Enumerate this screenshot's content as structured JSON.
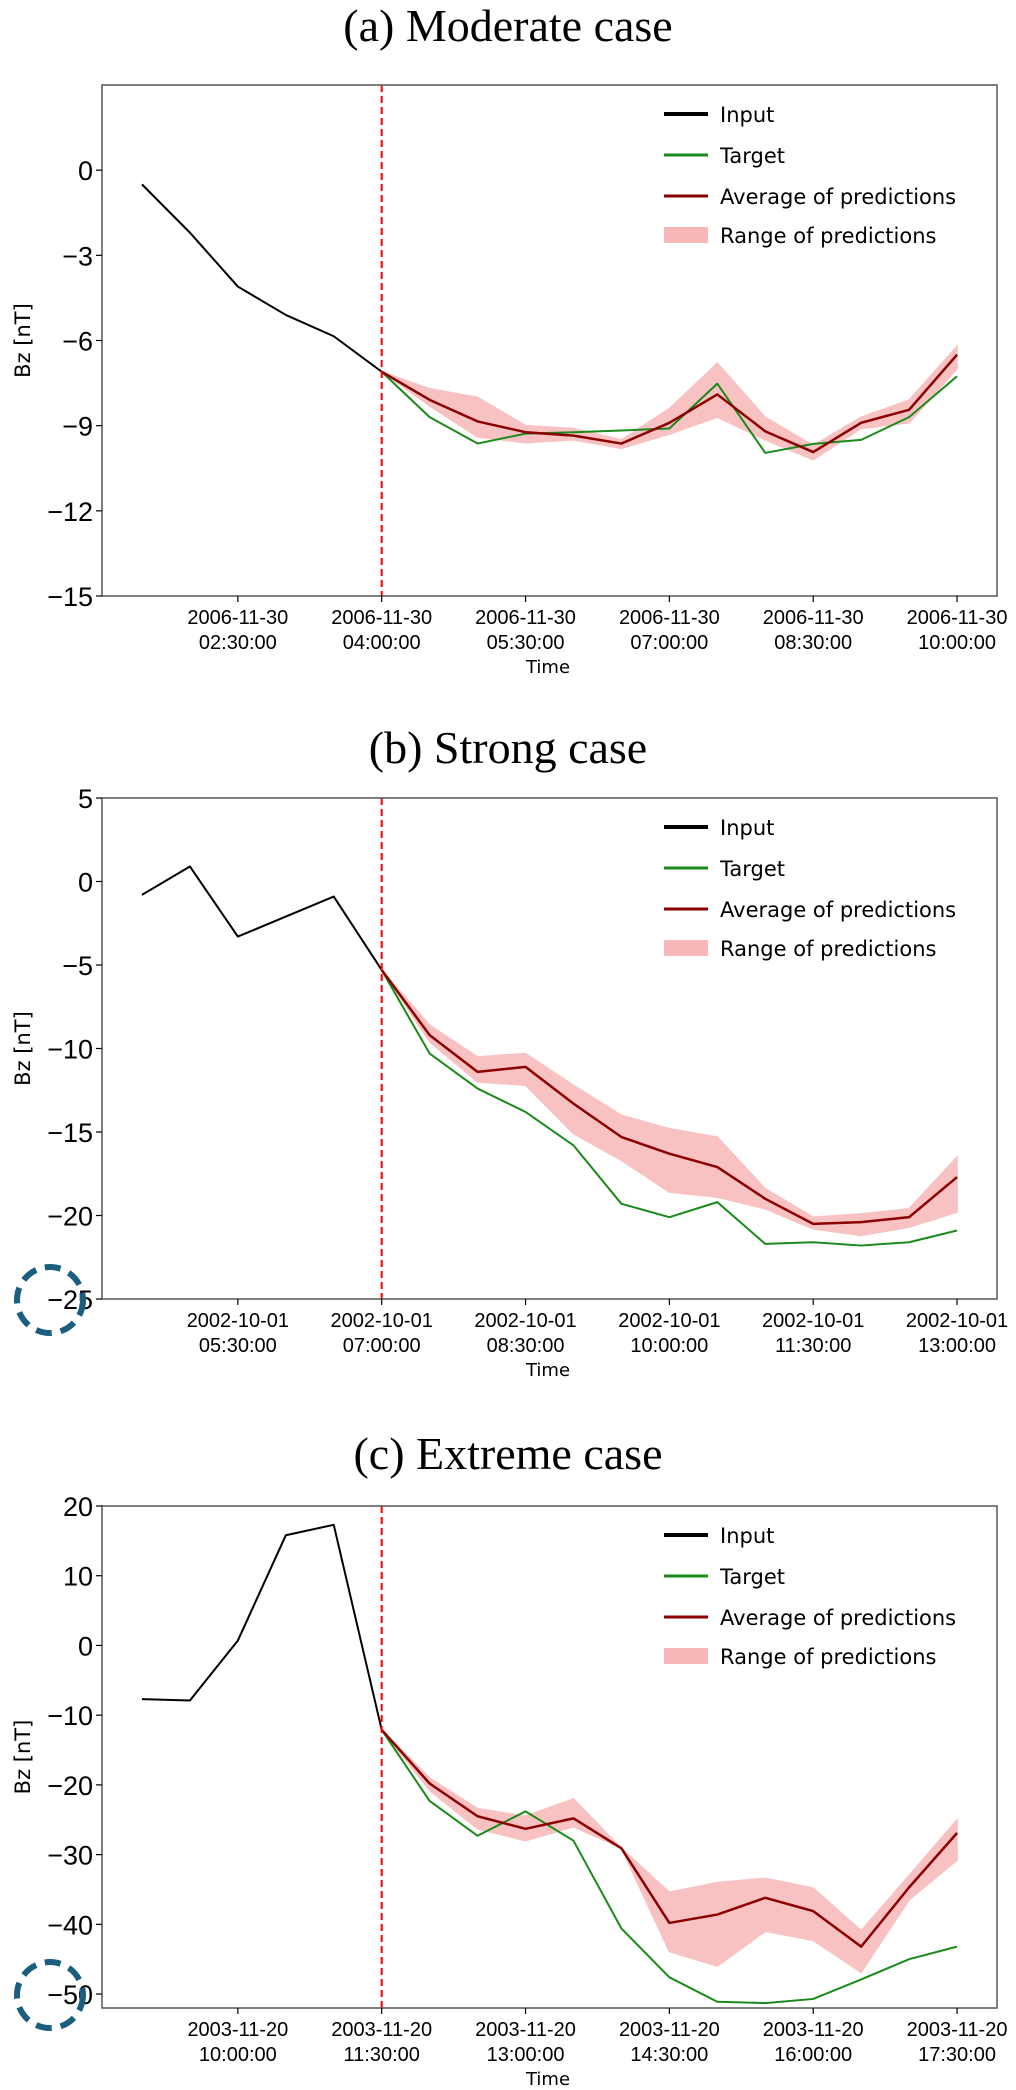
{
  "colors": {
    "input": "#000000",
    "target": "#1a8a1a",
    "average": "#8b0000",
    "range": "#f9b8b8",
    "vline": "#ff0000",
    "annotation": "#1b5e7e"
  },
  "chart_data": [
    {
      "type": "line",
      "title": "(a) Moderate case",
      "xlabel": "Time",
      "ylabel": "Bz [nT]",
      "ylim": [
        -15,
        3
      ],
      "yticks": [
        0,
        -3,
        -6,
        -9,
        -12,
        -15
      ],
      "ytick_labels": [
        "0",
        "−3",
        "−6",
        "−9",
        "−12",
        "−15"
      ],
      "xlim": [
        "01:05",
        "10:25"
      ],
      "xticks": [
        {
          "at": "02:30",
          "date": "2006-11-30",
          "time": "02:30:00"
        },
        {
          "at": "04:00",
          "date": "2006-11-30",
          "time": "04:00:00"
        },
        {
          "at": "05:30",
          "date": "2006-11-30",
          "time": "05:30:00"
        },
        {
          "at": "07:00",
          "date": "2006-11-30",
          "time": "07:00:00"
        },
        {
          "at": "08:30",
          "date": "2006-11-30",
          "time": "08:30:00"
        },
        {
          "at": "10:00",
          "date": "2006-11-30",
          "time": "10:00:00"
        }
      ],
      "forecast_start": "04:00",
      "input": {
        "x": [
          "01:30",
          "02:00",
          "02:30",
          "03:00",
          "03:30",
          "04:00"
        ],
        "y": [
          -0.5,
          -2.2,
          -4.1,
          -5.1,
          -5.85,
          -7.1
        ]
      },
      "pred_x": [
        "04:00",
        "04:30",
        "05:00",
        "05:30",
        "06:00",
        "06:30",
        "07:00",
        "07:30",
        "08:00",
        "08:30",
        "09:00",
        "09:30",
        "10:00"
      ],
      "target": [
        -7.1,
        -8.7,
        -9.63,
        -9.28,
        -9.23,
        -9.17,
        -9.1,
        -7.52,
        -9.96,
        -9.64,
        -9.5,
        -8.7,
        -7.26
      ],
      "average": [
        -7.1,
        -8.09,
        -8.85,
        -9.23,
        -9.35,
        -9.63,
        -8.9,
        -7.9,
        -9.2,
        -9.93,
        -8.9,
        -8.44,
        -6.5
      ],
      "range_upper": [
        -7.1,
        -7.7,
        -8.0,
        -9.0,
        -9.1,
        -9.5,
        -8.4,
        -6.8,
        -8.7,
        -9.7,
        -8.7,
        -8.1,
        -6.2
      ],
      "range_lower": [
        -7.1,
        -8.3,
        -9.4,
        -9.6,
        -9.5,
        -9.8,
        -9.3,
        -8.7,
        -9.5,
        -10.2,
        -9.1,
        -8.9,
        -7.0
      ],
      "legend": {
        "placement": "top-right",
        "items": [
          "Input",
          "Target",
          "Average of predictions",
          "Range of predictions"
        ]
      },
      "highlighted_tick": null
    },
    {
      "type": "line",
      "title": "(b) Strong case",
      "xlabel": "Time",
      "ylabel": "Bz [nT]",
      "ylim": [
        -25,
        5
      ],
      "yticks": [
        5,
        0,
        -5,
        -10,
        -15,
        -20,
        -25
      ],
      "ytick_labels": [
        "5",
        "0",
        "−5",
        "−10",
        "−15",
        "−20",
        "−25"
      ],
      "xlim": [
        "04:05",
        "13:25"
      ],
      "xticks": [
        {
          "at": "05:30",
          "date": "2002-10-01",
          "time": "05:30:00"
        },
        {
          "at": "07:00",
          "date": "2002-10-01",
          "time": "07:00:00"
        },
        {
          "at": "08:30",
          "date": "2002-10-01",
          "time": "08:30:00"
        },
        {
          "at": "10:00",
          "date": "2002-10-01",
          "time": "10:00:00"
        },
        {
          "at": "11:30",
          "date": "2002-10-01",
          "time": "11:30:00"
        },
        {
          "at": "13:00",
          "date": "2002-10-01",
          "time": "13:00:00"
        }
      ],
      "forecast_start": "07:00",
      "input": {
        "x": [
          "04:30",
          "05:00",
          "05:30",
          "06:00",
          "06:30",
          "07:00"
        ],
        "y": [
          -0.8,
          0.9,
          -3.3,
          -2.1,
          -0.9,
          -5.3
        ]
      },
      "pred_x": [
        "07:00",
        "07:30",
        "08:00",
        "08:30",
        "09:00",
        "09:30",
        "10:00",
        "10:30",
        "11:00",
        "11:30",
        "12:00",
        "12:30",
        "13:00"
      ],
      "target": [
        -5.3,
        -10.3,
        -12.4,
        -13.8,
        -15.8,
        -19.3,
        -20.1,
        -19.2,
        -21.7,
        -21.6,
        -21.8,
        -21.6,
        -20.9
      ],
      "average": [
        -5.3,
        -9.2,
        -11.4,
        -11.1,
        -13.3,
        -15.3,
        -16.3,
        -17.1,
        -19.0,
        -20.5,
        -20.4,
        -20.1,
        -17.7
      ],
      "range_upper": [
        -5.3,
        -8.6,
        -10.5,
        -10.3,
        -12.2,
        -14.0,
        -14.8,
        -15.3,
        -18.4,
        -20.1,
        -19.9,
        -19.6,
        -16.5
      ],
      "range_lower": [
        -5.3,
        -9.6,
        -12.0,
        -12.2,
        -15.1,
        -16.7,
        -18.6,
        -18.9,
        -19.6,
        -20.8,
        -21.2,
        -20.7,
        -19.8
      ],
      "legend": {
        "placement": "top-right",
        "items": [
          "Input",
          "Target",
          "Average of predictions",
          "Range of predictions"
        ]
      },
      "highlighted_tick": -25
    },
    {
      "type": "line",
      "title": "(c) Extreme case",
      "xlabel": "Time",
      "ylabel": "Bz [nT]",
      "ylim": [
        -52,
        20
      ],
      "yticks": [
        20,
        10,
        0,
        -10,
        -20,
        -30,
        -40,
        -50
      ],
      "ytick_labels": [
        "20",
        "10",
        "0",
        "−10",
        "−20",
        "−30",
        "−40",
        "−50"
      ],
      "xlim": [
        "08:35",
        "17:55"
      ],
      "xticks": [
        {
          "at": "10:00",
          "date": "2003-11-20",
          "time": "10:00:00"
        },
        {
          "at": "11:30",
          "date": "2003-11-20",
          "time": "11:30:00"
        },
        {
          "at": "13:00",
          "date": "2003-11-20",
          "time": "13:00:00"
        },
        {
          "at": "14:30",
          "date": "2003-11-20",
          "time": "14:30:00"
        },
        {
          "at": "16:00",
          "date": "2003-11-20",
          "time": "16:00:00"
        },
        {
          "at": "17:30",
          "date": "2003-11-20",
          "time": "17:30:00"
        }
      ],
      "forecast_start": "11:30",
      "input": {
        "x": [
          "09:00",
          "09:30",
          "10:00",
          "10:30",
          "11:00",
          "11:30"
        ],
        "y": [
          -7.7,
          -7.9,
          0.7,
          15.8,
          17.3,
          -12.1
        ]
      },
      "pred_x": [
        "11:30",
        "12:00",
        "12:30",
        "13:00",
        "13:30",
        "14:00",
        "14:30",
        "15:00",
        "15:30",
        "16:00",
        "16:30",
        "17:00",
        "17:30"
      ],
      "target": [
        -12.1,
        -22.3,
        -27.3,
        -23.8,
        -28.0,
        -40.6,
        -47.6,
        -51.1,
        -51.3,
        -50.7,
        -47.9,
        -45.0,
        -43.2
      ],
      "average": [
        -12.1,
        -19.8,
        -24.5,
        -26.3,
        -24.8,
        -29.1,
        -39.8,
        -38.6,
        -36.2,
        -38.1,
        -43.2,
        -34.7,
        -26.9
      ],
      "range_upper": [
        -12.1,
        -19.0,
        -23.4,
        -24.5,
        -22.0,
        -29.1,
        -35.4,
        -34.0,
        -33.4,
        -34.8,
        -40.9,
        -33.0,
        -25.0
      ],
      "range_lower": [
        -12.1,
        -20.8,
        -26.3,
        -28.0,
        -26.0,
        -29.1,
        -43.9,
        -46.0,
        -41.0,
        -42.3,
        -46.9,
        -36.5,
        -30.8
      ],
      "legend": {
        "placement": "top-right",
        "items": [
          "Input",
          "Target",
          "Average of predictions",
          "Range of predictions"
        ]
      },
      "highlighted_tick": -50
    }
  ]
}
